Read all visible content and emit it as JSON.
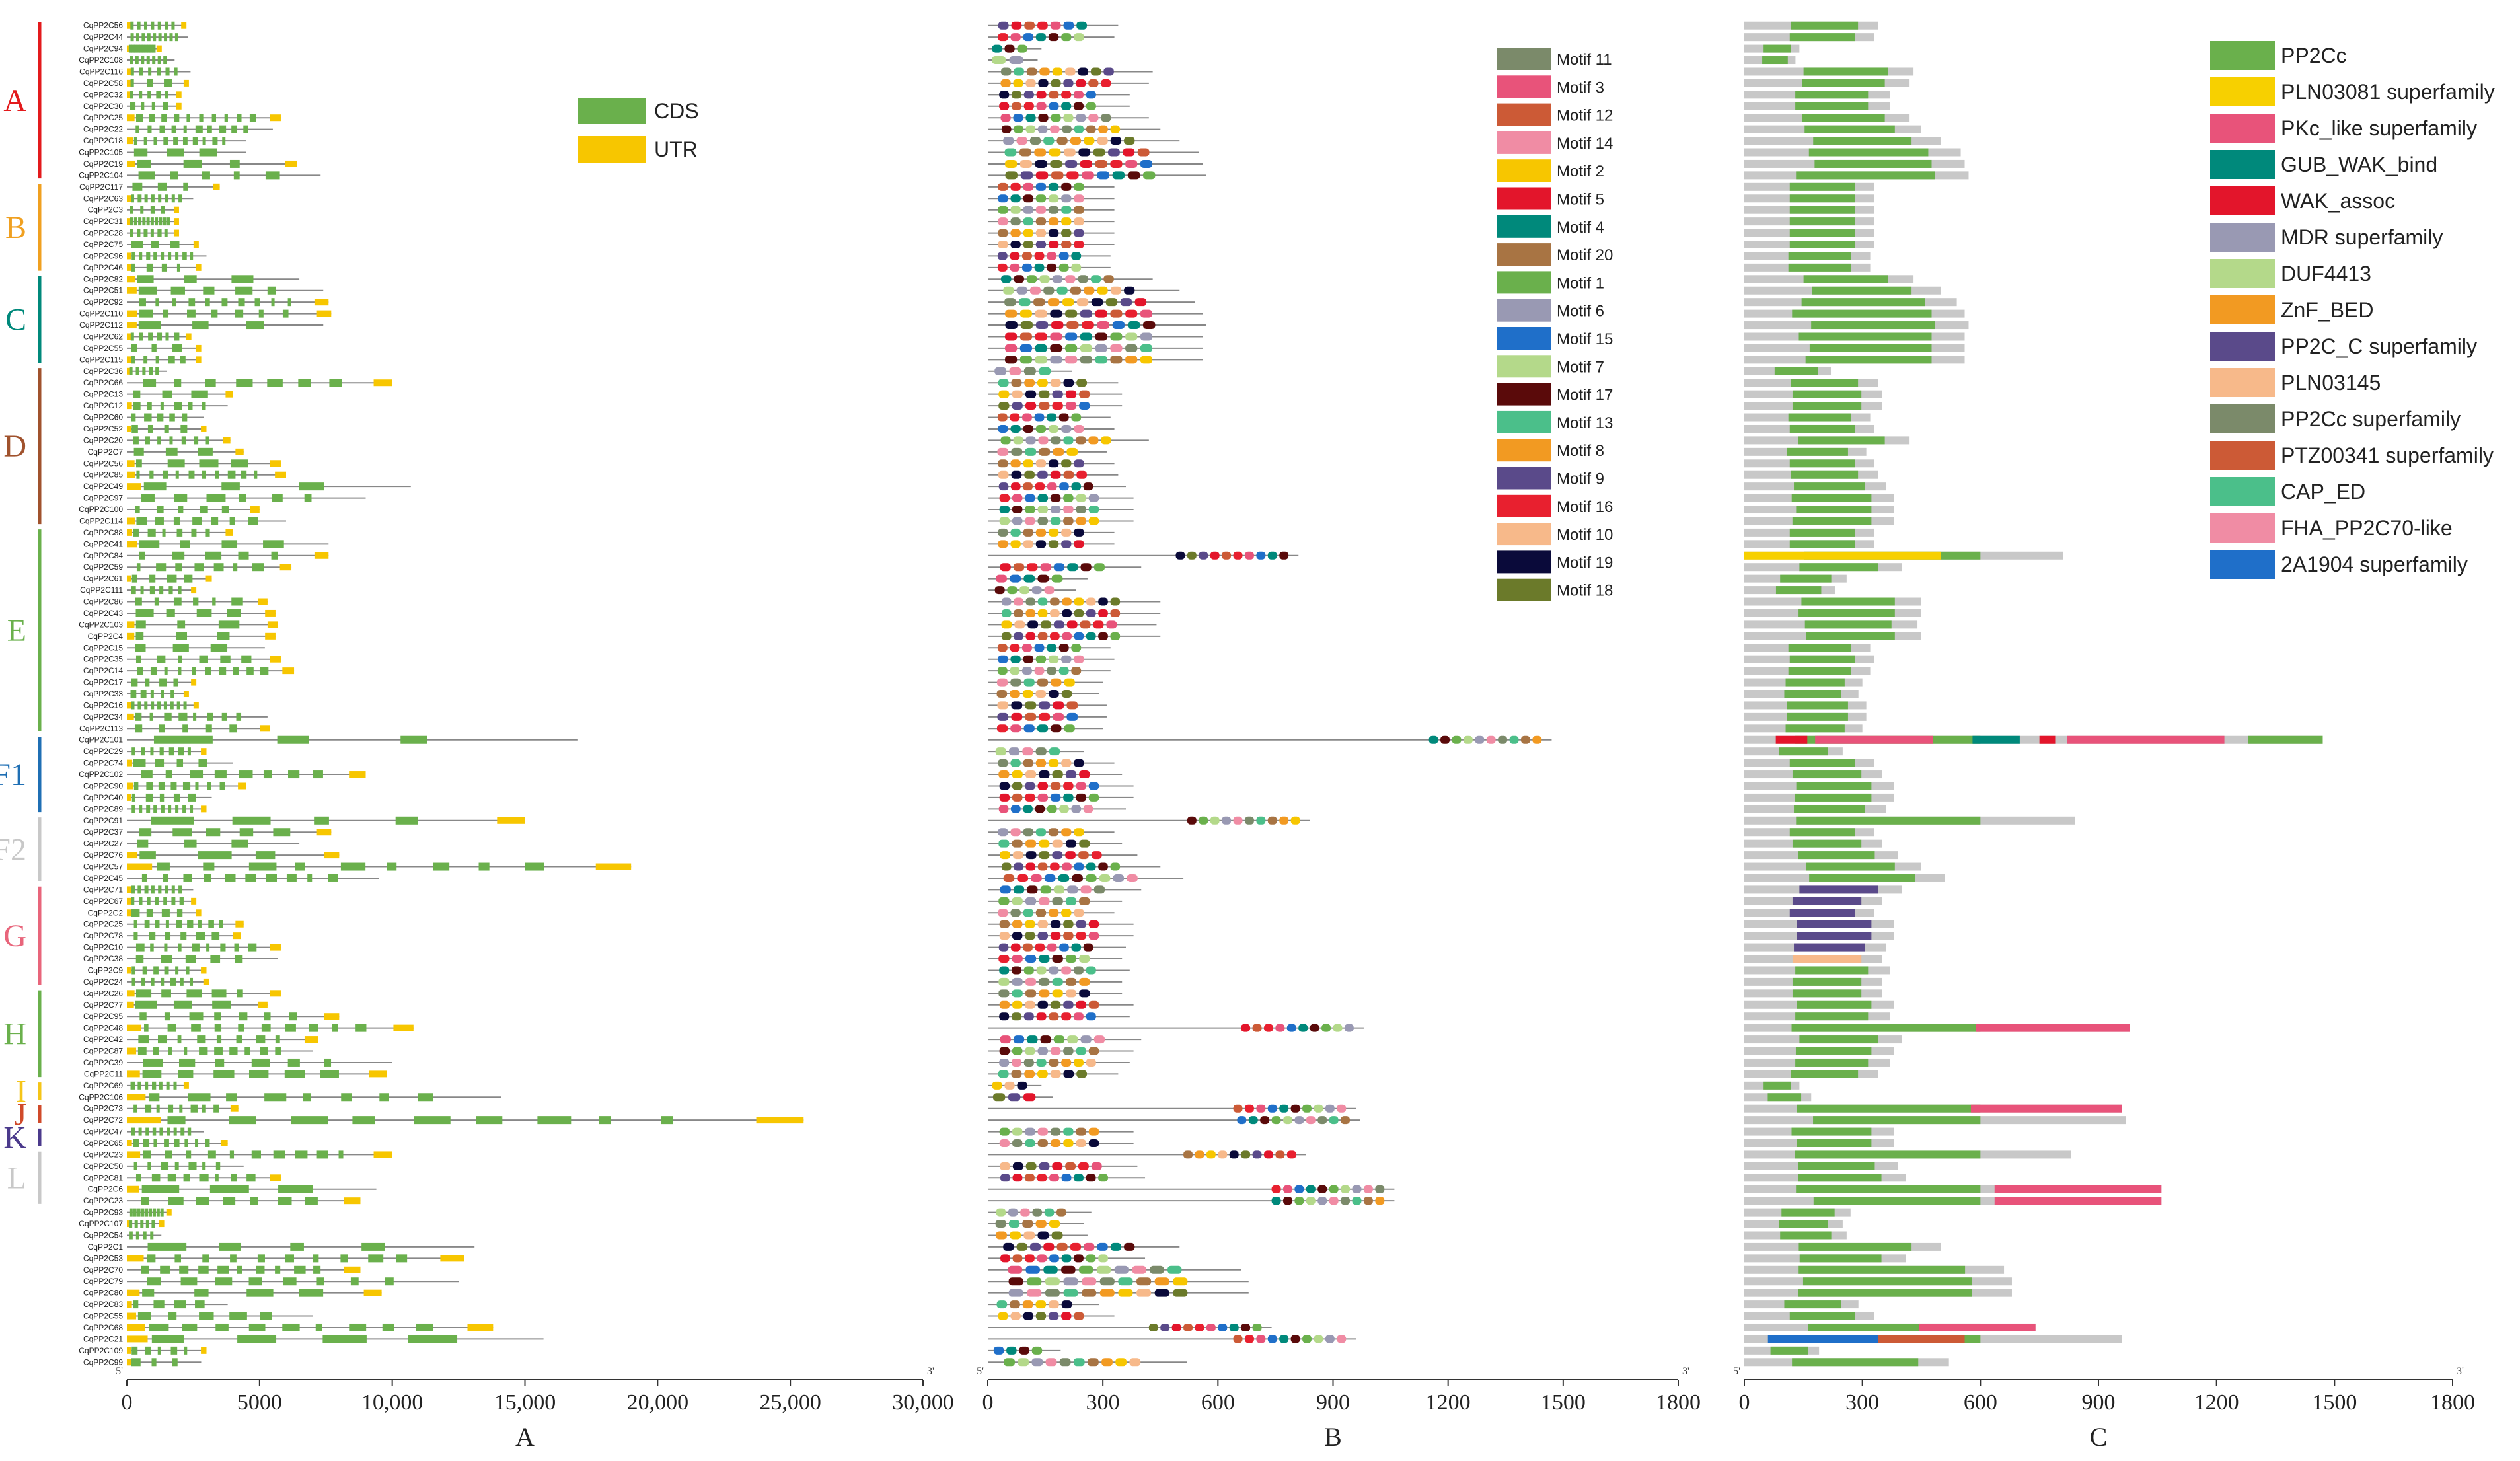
{
  "genes": [
    "CqPP2C56",
    "CqPP2C44",
    "CqPP2C94",
    "CqPP2C108",
    "CqPP2C116",
    "CqPP2C58",
    "CqPP2C32",
    "CqPP2C30",
    "CqPP2C25",
    "CqPP2C22",
    "CqPP2C18",
    "CqPP2C105",
    "CqPP2C19",
    "CqPP2C104",
    "CqPP2C117",
    "CqPP2C63",
    "CqPP2C3",
    "CqPP2C31",
    "CqPP2C28",
    "CqPP2C75",
    "CqPP2C96",
    "CqPP2C46",
    "CqPP2C82",
    "CqPP2C51",
    "CqPP2C92",
    "CqPP2C110",
    "CqPP2C112",
    "CqPP2C62",
    "CqPP2C55",
    "CqPP2C115",
    "CqPP2C36",
    "CqPP2C66",
    "CqPP2C13",
    "CqPP2C12",
    "CqPP2C60",
    "CqPP2C52",
    "CqPP2C20",
    "CqPP2C7",
    "CqPP2C56",
    "CqPP2C85",
    "CqPP2C49",
    "CqPP2C97",
    "CqPP2C100",
    "CqPP2C114",
    "CqPP2C88",
    "CqPP2C41",
    "CqPP2C84",
    "CqPP2C59",
    "CqPP2C61",
    "CqPP2C111",
    "CqPP2C86",
    "CqPP2C43",
    "CqPP2C103",
    "CqPP2C4",
    "CqPP2C15",
    "CqPP2C35",
    "CqPP2C14",
    "CqPP2C17",
    "CqPP2C33",
    "CqPP2C16",
    "CqPP2C34",
    "CqPP2C113",
    "CqPP2C101",
    "CqPP2C29",
    "CqPP2C74",
    "CqPP2C102",
    "CqPP2C90",
    "CqPP2C40",
    "CqPP2C89",
    "CqPP2C91",
    "CqPP2C37",
    "CqPP2C27",
    "CqPP2C76",
    "CqPP2C57",
    "CqPP2C45",
    "CqPP2C71",
    "CqPP2C67",
    "CqPP2C2",
    "CqPP2C25",
    "CqPP2C78",
    "CqPP2C10",
    "CqPP2C38",
    "CqPP2C9",
    "CqPP2C24",
    "CqPP2C26",
    "CqPP2C77",
    "CqPP2C95",
    "CqPP2C48",
    "CqPP2C42",
    "CqPP2C87",
    "CqPP2C39",
    "CqPP2C11",
    "CqPP2C69",
    "CqPP2C106",
    "CqPP2C73",
    "CqPP2C72",
    "CqPP2C47",
    "CqPP2C65",
    "CqPP2C23",
    "CqPP2C50",
    "CqPP2C81",
    "CqPP2C6",
    "CqPP2C23",
    "CqPP2C93",
    "CqPP2C107",
    "CqPP2C54",
    "CqPP2C1",
    "CqPP2C53",
    "CqPP2C70",
    "CqPP2C79",
    "CqPP2C80",
    "CqPP2C83",
    "CqPP2C55",
    "CqPP2C68",
    "CqPP2C21",
    "CqPP2C109",
    "CqPP2C99"
  ],
  "groups": [
    {
      "label": "A",
      "color": "#e31a1c",
      "start": 0,
      "end": 13
    },
    {
      "label": "B",
      "color": "#f0a020",
      "start": 14,
      "end": 21
    },
    {
      "label": "C",
      "color": "#00897b",
      "start": 22,
      "end": 29
    },
    {
      "label": "D",
      "color": "#a0522d",
      "start": 30,
      "end": 43
    },
    {
      "label": "E",
      "color": "#6ab04c",
      "start": 44,
      "end": 61
    },
    {
      "label": "F1",
      "color": "#1f6fb4",
      "start": 62,
      "end": 68
    },
    {
      "label": "F2",
      "color": "#c8c8c8",
      "start": 69,
      "end": 74
    },
    {
      "label": "G",
      "color": "#e8657b",
      "start": 75,
      "end": 83
    },
    {
      "label": "H",
      "color": "#6ab04c",
      "start": 84,
      "end": 91
    },
    {
      "label": "I",
      "color": "#f5c518",
      "start": 92,
      "end": 93
    },
    {
      "label": "J",
      "color": "#d04a2a",
      "start": 94,
      "end": 95
    },
    {
      "label": "K",
      "color": "#4b3a8c",
      "start": 96,
      "end": 97
    },
    {
      "label": "L",
      "color": "#c8c8c8",
      "start": 98,
      "end": 102
    }
  ],
  "panelA": {
    "letter": "A",
    "ticks": [
      "0",
      "5000",
      "10,000",
      "15,000",
      "20,000",
      "25,000",
      "30,000"
    ],
    "tick_values": [
      0,
      5000,
      10000,
      15000,
      20000,
      25000,
      30000
    ],
    "max": 30000,
    "legend": [
      {
        "label": "CDS",
        "color": "#6ab04c"
      },
      {
        "label": "UTR",
        "color": "#f7c600"
      }
    ],
    "five_prime": "5'",
    "three_prime": "3'",
    "gene_lengths": [
      2200,
      2300,
      1200,
      1800,
      2400,
      2300,
      2000,
      2000,
      5800,
      5500,
      4500,
      4500,
      6400,
      7300,
      3500,
      2500,
      1900,
      1900,
      1900,
      2700,
      3000,
      2800,
      6500,
      7400,
      7600,
      7700,
      7400,
      2400,
      2800,
      2800,
      1500,
      10000,
      4000,
      3800,
      2900,
      3000,
      3900,
      4400,
      5800,
      6000,
      10700,
      9000,
      5000,
      6000,
      4000,
      7600,
      7600,
      6200,
      3200,
      2600,
      5300,
      5600,
      5700,
      5600,
      5200,
      5800,
      6300,
      2600,
      2300,
      2700,
      5300,
      5400,
      17000,
      3000,
      4000,
      9000,
      4500,
      3200,
      3000,
      15000,
      7700,
      6500,
      8000,
      19000,
      9500,
      2500,
      2600,
      2800,
      4400,
      4300,
      5800,
      5700,
      3000,
      3100,
      5800,
      5300,
      8000,
      10800,
      7200,
      7000,
      10000,
      9800,
      2300,
      14100,
      4200,
      25500,
      2900,
      3800,
      10000,
      4400,
      5800,
      9400,
      8800,
      1600,
      1300,
      1300,
      13100,
      12700,
      8800,
      12500,
      9600,
      3800,
      7000,
      13800,
      15700,
      3000,
      2800
    ]
  },
  "panelB": {
    "letter": "B",
    "ticks": [
      "0",
      "300",
      "600",
      "900",
      "1200",
      "1500",
      "1800"
    ],
    "tick_values": [
      0,
      300,
      600,
      900,
      1200,
      1500,
      1800
    ],
    "max": 1800,
    "five_prime": "5'",
    "three_prime": "3'",
    "protein_lengths": [
      340,
      330,
      140,
      130,
      430,
      420,
      370,
      370,
      420,
      450,
      500,
      550,
      560,
      570,
      330,
      330,
      330,
      330,
      330,
      330,
      320,
      320,
      430,
      500,
      540,
      560,
      570,
      560,
      560,
      560,
      220,
      340,
      350,
      350,
      320,
      330,
      420,
      310,
      330,
      340,
      360,
      380,
      380,
      380,
      330,
      330,
      810,
      400,
      260,
      230,
      450,
      450,
      440,
      450,
      320,
      330,
      320,
      300,
      290,
      310,
      310,
      300,
      1470,
      250,
      330,
      350,
      380,
      380,
      360,
      840,
      330,
      350,
      390,
      450,
      510,
      400,
      350,
      330,
      380,
      380,
      360,
      350,
      370,
      350,
      350,
      380,
      370,
      980,
      400,
      380,
      370,
      340,
      140,
      170,
      960,
      970,
      380,
      380,
      830,
      390,
      410,
      1060,
      1060,
      270,
      250,
      260,
      500,
      410,
      660,
      680,
      680,
      290,
      330,
      740,
      960,
      190,
      520
    ],
    "legend": [
      {
        "label": "Motif 11",
        "color": "#7b8a6a"
      },
      {
        "label": "Motif 3",
        "color": "#e8537a"
      },
      {
        "label": "Motif 12",
        "color": "#cc5a36"
      },
      {
        "label": "Motif 14",
        "color": "#f08ca4"
      },
      {
        "label": "Motif 2",
        "color": "#f7c600"
      },
      {
        "label": "Motif 5",
        "color": "#e3152b"
      },
      {
        "label": "Motif 4",
        "color": "#00897b"
      },
      {
        "label": "Motif 20",
        "color": "#a87443"
      },
      {
        "label": "Motif 1",
        "color": "#6ab04c"
      },
      {
        "label": "Motif 6",
        "color": "#9999b3"
      },
      {
        "label": "Motif 15",
        "color": "#1f6fc9"
      },
      {
        "label": "Motif 7",
        "color": "#b4d98a"
      },
      {
        "label": "Motif 17",
        "color": "#5a0a0a"
      },
      {
        "label": "Motif 13",
        "color": "#4bbf8a"
      },
      {
        "label": "Motif 8",
        "color": "#f29a22"
      },
      {
        "label": "Motif 9",
        "color": "#5a4a8a"
      },
      {
        "label": "Motif 16",
        "color": "#e8202f"
      },
      {
        "label": "Motif 10",
        "color": "#f7b98a"
      },
      {
        "label": "Motif 19",
        "color": "#0a0a3a"
      },
      {
        "label": "Motif 18",
        "color": "#6b7a2a"
      }
    ]
  },
  "panelC": {
    "letter": "C",
    "ticks": [
      "0",
      "300",
      "600",
      "900",
      "1200",
      "1500",
      "1800"
    ],
    "tick_values": [
      0,
      300,
      600,
      900,
      1200,
      1500,
      1800
    ],
    "max": 1800,
    "five_prime": "5'",
    "three_prime": "3'",
    "legend": [
      {
        "label": "PP2Cc",
        "color": "#6ab04c"
      },
      {
        "label": "PLN03081 superfamily",
        "color": "#f7d000"
      },
      {
        "label": "PKc_like superfamily",
        "color": "#e8537a"
      },
      {
        "label": "GUB_WAK_bind",
        "color": "#00897b"
      },
      {
        "label": "WAK_assoc",
        "color": "#e3152b"
      },
      {
        "label": "MDR superfamily",
        "color": "#9999b3"
      },
      {
        "label": "DUF4413",
        "color": "#b4d98a"
      },
      {
        "label": "ZnF_BED",
        "color": "#f29a22"
      },
      {
        "label": "PP2C_C superfamily",
        "color": "#5a4a8a"
      },
      {
        "label": "PLN03145",
        "color": "#f7b98a"
      },
      {
        "label": "PP2Cc superfamily",
        "color": "#7b8a6a"
      },
      {
        "label": "PTZ00341 superfamily",
        "color": "#cc5a36"
      },
      {
        "label": "CAP_ED",
        "color": "#4bbf8a"
      },
      {
        "label": "FHA_PP2C70-like",
        "color": "#f08ca4"
      },
      {
        "label": "2A1904 superfamily",
        "color": "#1f6fc9"
      }
    ]
  }
}
